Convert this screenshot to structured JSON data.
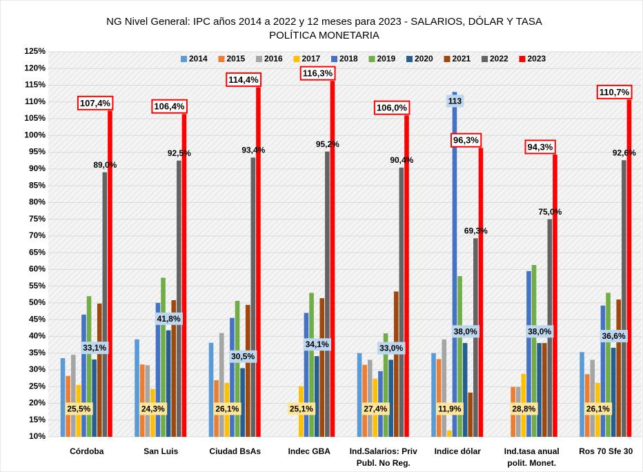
{
  "chart_data": {
    "type": "bar",
    "title": "NG Nivel General:  IPC años 2014 a 2022 y 12 meses para 2023 - SALARIOS, DÓLAR  Y TASA\nPOLÍTICA MONETARIA",
    "categories": [
      "Córdoba",
      "San Luis",
      "Ciudad BsAs",
      "Indec  GBA",
      "Ind.Salarios: Priv\nPubl. No Reg.",
      "Indice dólar",
      "Ind.tasa anual\npolit. Monet.",
      "Ros 70  Sfe 30"
    ],
    "series": [
      {
        "name": "2014",
        "color": "#5b9bd5",
        "values": [
          33.5,
          39.1,
          38.1,
          null,
          35,
          35,
          null,
          35.3
        ]
      },
      {
        "name": "2015",
        "color": "#ed7d31",
        "values": [
          28.2,
          31.6,
          26.9,
          null,
          31.5,
          33.2,
          24.9,
          28.7
        ]
      },
      {
        "name": "2016",
        "color": "#a5a5a5",
        "values": [
          34.5,
          31.4,
          41,
          null,
          33,
          39.1,
          24.9,
          33
        ]
      },
      {
        "name": "2017",
        "color": "#ffc000",
        "values": [
          25.5,
          24.3,
          26.1,
          25.1,
          27.4,
          11.9,
          28.8,
          26.1
        ],
        "value_labels": [
          "25,5%",
          "24,3%",
          "26,1%",
          "25,1%",
          "27,4%",
          "11,9%",
          "28,8%",
          "26,1%"
        ]
      },
      {
        "name": "2018",
        "color": "#4472c4",
        "values": [
          46.5,
          50,
          45.5,
          47,
          29.6,
          113,
          59.5,
          49.2
        ],
        "value_labels": [
          null,
          null,
          null,
          null,
          null,
          "113",
          null,
          null
        ]
      },
      {
        "name": "2019",
        "color": "#70ad47",
        "values": [
          52,
          57.5,
          50.6,
          53,
          40.9,
          58,
          61.3,
          53
        ]
      },
      {
        "name": "2020",
        "color": "#255e91",
        "values": [
          33.1,
          41.8,
          30.5,
          34.1,
          33.0,
          38.0,
          38.0,
          36.6
        ],
        "value_labels": [
          "33,1%",
          "41,8%",
          "30,5%",
          "34,1%",
          "33,0%",
          "38,0%",
          "38,0%",
          "36,6%"
        ]
      },
      {
        "name": "2021",
        "color": "#9e480e",
        "values": [
          49.8,
          50.8,
          49.4,
          51.4,
          53.4,
          23.2,
          38.0,
          51
        ]
      },
      {
        "name": "2022",
        "color": "#636363",
        "values": [
          89.0,
          92.5,
          93.4,
          95.2,
          90.4,
          69.3,
          75.0,
          92.6
        ],
        "value_labels": [
          "89,0%",
          "92,5%",
          "93,4%",
          "95,2%",
          "90,4%",
          "69,3%",
          "75,0%",
          "92,6%"
        ]
      },
      {
        "name": "2023",
        "color": "#ff0000",
        "values": [
          107.4,
          106.4,
          114.4,
          116.3,
          106.0,
          96.3,
          94.3,
          110.7
        ],
        "value_labels": [
          "107,4%",
          "106,4%",
          "114,4%",
          "116,3%",
          "106,0%",
          "96,3%",
          "94,3%",
          "110,7%"
        ]
      }
    ],
    "ylim": [
      10,
      125
    ],
    "yticks": [
      {
        "value": 10,
        "label": "10%"
      },
      {
        "value": 15,
        "label": "15%"
      },
      {
        "value": 20,
        "label": "20%"
      },
      {
        "value": 25,
        "label": "25%"
      },
      {
        "value": 30,
        "label": "30%"
      },
      {
        "value": 35,
        "label": "35%"
      },
      {
        "value": 40,
        "label": "40%"
      },
      {
        "value": 45,
        "label": "45%"
      },
      {
        "value": 50,
        "label": "50%"
      },
      {
        "value": 55,
        "label": "55%"
      },
      {
        "value": 60,
        "label": "60%"
      },
      {
        "value": 65,
        "label": "65%"
      },
      {
        "value": 70,
        "label": "70%"
      },
      {
        "value": 75,
        "label": "75%"
      },
      {
        "value": 80,
        "label": "80%"
      },
      {
        "value": 85,
        "label": "85%"
      },
      {
        "value": 90,
        "label": "90%"
      },
      {
        "value": 95,
        "label": "95%"
      },
      {
        "value": 100,
        "label": "100%"
      },
      {
        "value": 105,
        "label": "105%"
      },
      {
        "value": 110,
        "label": "110%"
      },
      {
        "value": 115,
        "label": "115%"
      },
      {
        "value": 120,
        "label": "120%"
      },
      {
        "value": 125,
        "label": "125%"
      }
    ],
    "grid": true,
    "legend": "top"
  }
}
